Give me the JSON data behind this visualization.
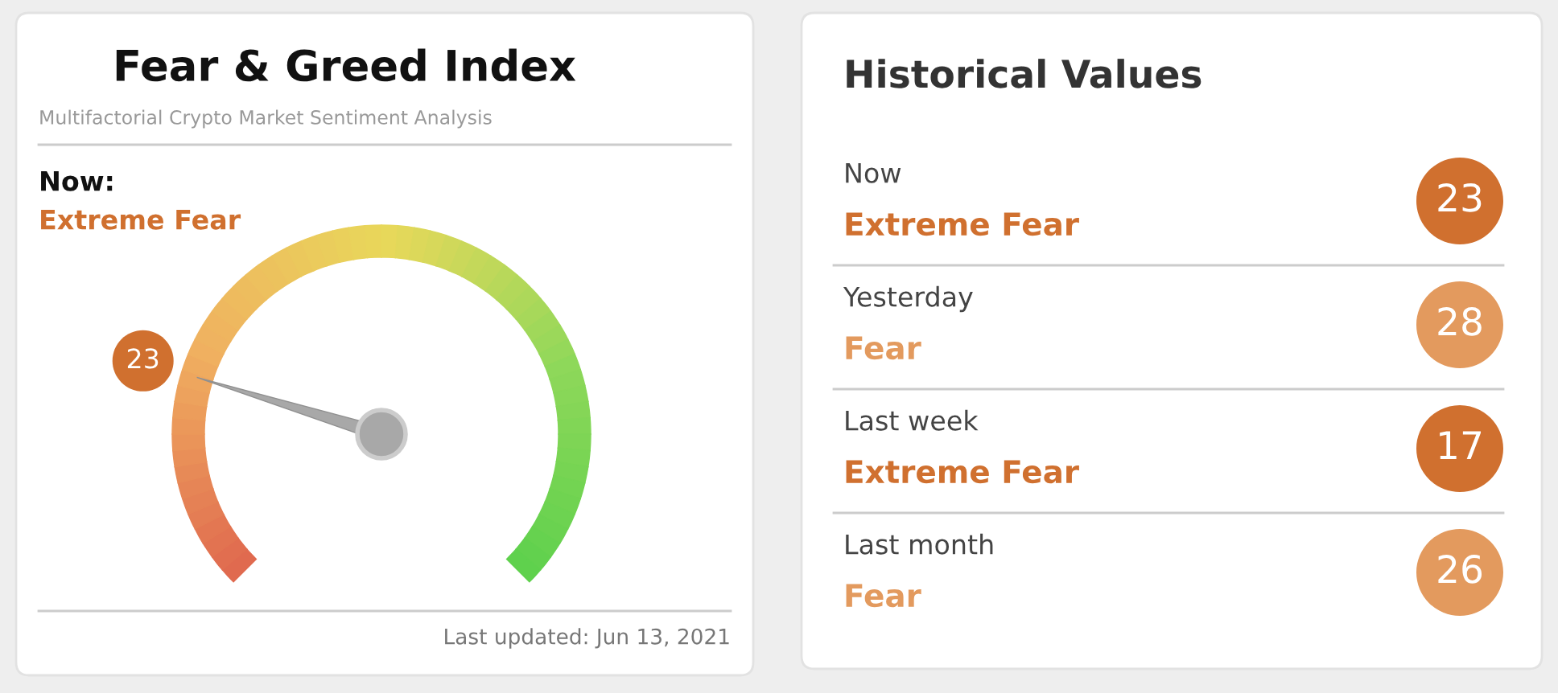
{
  "chart_data": [
    {
      "type": "other",
      "title": "Fear & Greed Index",
      "subtitle": "Multifactorial Crypto Market Sentiment Analysis",
      "values": [
        23
      ],
      "colors": [
        "#d0702f"
      ],
      "data_labels": true,
      "annotations": [
        "Now:",
        "Extreme Fear",
        "Last updated: Jun 13, 2021"
      ]
    },
    {
      "type": "other",
      "title": "Historical Values",
      "annotations": [
        "Now",
        "Extreme Fear",
        "23",
        "Yesterday",
        "Fear",
        "28",
        "Last week",
        "Extreme Fear",
        "17",
        "Last month",
        "Fear",
        "26"
      ]
    }
  ]
}
